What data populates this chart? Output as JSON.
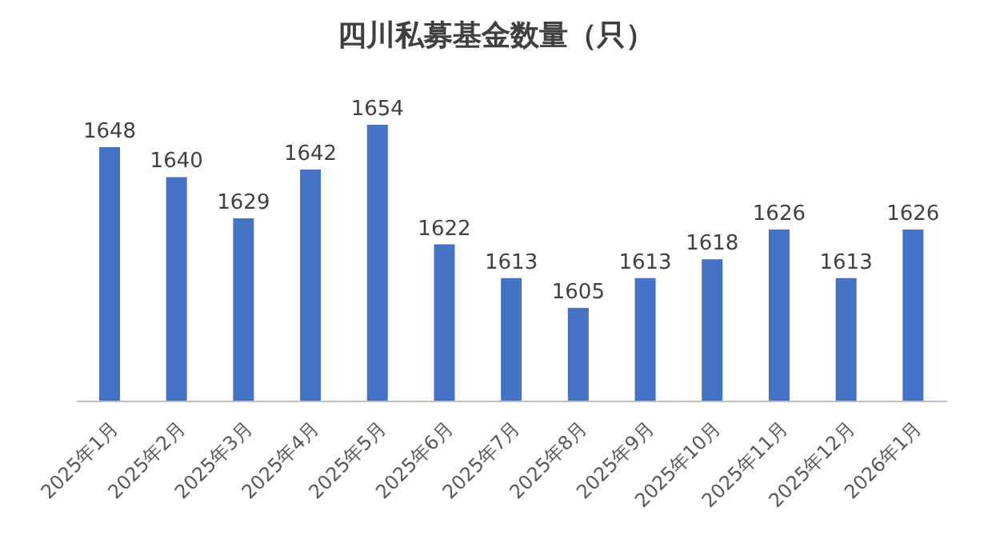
{
  "chart_data": {
    "type": "bar",
    "title": "四川私募基金数量（只）",
    "categories": [
      "2025年1月",
      "2025年2月",
      "2025年3月",
      "2025年4月",
      "2025年5月",
      "2025年6月",
      "2025年7月",
      "2025年8月",
      "2025年9月",
      "2025年10月",
      "2025年11月",
      "2025年12月",
      "2026年1月"
    ],
    "values": [
      1648,
      1640,
      1629,
      1642,
      1654,
      1622,
      1613,
      1605,
      1613,
      1618,
      1626,
      1613,
      1626
    ],
    "color": "#4472c4",
    "ylim": [
      1580,
      1654
    ],
    "tick_labels": "x",
    "data_labels": true,
    "grid": false,
    "legend": false
  }
}
